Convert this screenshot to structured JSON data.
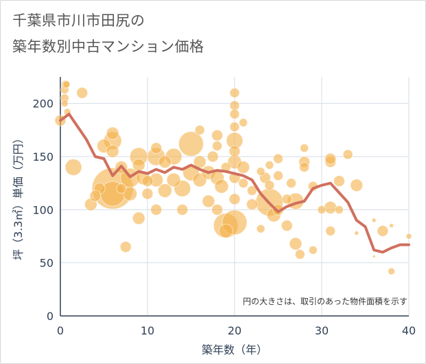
{
  "title_line1": "千葉県市川市田尻の",
  "title_line2": "築年数別中古マンション価格",
  "note": "円の大きさは、取引のあった物件面積を示す",
  "chart_data": {
    "type": "scatter",
    "xlabel": "築年数（年）",
    "ylabel": "坪（3.3㎡）単価（万円）",
    "xlim": [
      0,
      40
    ],
    "ylim": [
      0,
      225
    ],
    "xticks": [
      "0",
      "10",
      "20",
      "30",
      "40"
    ],
    "yticks": [
      "0",
      "50",
      "100",
      "150",
      "200"
    ],
    "grid": true,
    "bubble_color": "#f3b04a",
    "line_color": "#d0705e",
    "bubbles": [
      [
        0,
        184,
        8
      ],
      [
        0.5,
        213,
        6
      ],
      [
        0.5,
        200,
        5
      ],
      [
        0.6,
        218,
        6
      ],
      [
        0.7,
        218,
        5
      ],
      [
        0.5,
        205,
        6
      ],
      [
        0.8,
        192,
        5
      ],
      [
        2.5,
        210,
        8
      ],
      [
        1.5,
        140,
        12
      ],
      [
        4.5,
        120,
        8
      ],
      [
        4,
        113,
        8
      ],
      [
        3.5,
        105,
        9
      ],
      [
        5,
        160,
        10
      ],
      [
        6,
        165,
        13
      ],
      [
        6,
        172,
        9
      ],
      [
        6,
        155,
        9
      ],
      [
        7,
        140,
        9
      ],
      [
        7,
        120,
        7
      ],
      [
        6,
        120,
        30
      ],
      [
        6,
        115,
        18
      ],
      [
        8,
        130,
        14
      ],
      [
        8,
        115,
        10
      ],
      [
        9,
        150,
        13
      ],
      [
        9,
        142,
        9
      ],
      [
        9,
        92,
        9
      ],
      [
        7.5,
        65,
        8
      ],
      [
        9.5,
        130,
        10
      ],
      [
        10,
        127,
        8
      ],
      [
        10,
        115,
        8
      ],
      [
        11,
        158,
        8
      ],
      [
        11,
        150,
        13
      ],
      [
        11,
        128,
        10
      ],
      [
        11,
        100,
        8
      ],
      [
        12,
        118,
        10
      ],
      [
        12,
        145,
        9
      ],
      [
        13,
        150,
        12
      ],
      [
        13,
        128,
        10
      ],
      [
        14,
        120,
        12
      ],
      [
        14,
        100,
        8
      ],
      [
        15,
        162,
        18
      ],
      [
        15,
        135,
        12
      ],
      [
        16,
        175,
        7
      ],
      [
        16,
        145,
        9
      ],
      [
        16,
        128,
        10
      ],
      [
        17,
        135,
        10
      ],
      [
        17,
        108,
        9
      ],
      [
        17.5,
        150,
        8
      ],
      [
        18,
        170,
        8
      ],
      [
        18,
        160,
        7
      ],
      [
        18,
        130,
        10
      ],
      [
        18,
        100,
        8
      ],
      [
        18.5,
        122,
        10
      ],
      [
        19,
        85,
        18
      ],
      [
        19,
        80,
        10
      ],
      [
        19,
        140,
        7
      ],
      [
        20,
        210,
        7
      ],
      [
        20,
        198,
        7
      ],
      [
        20,
        190,
        7
      ],
      [
        20,
        178,
        7
      ],
      [
        20,
        165,
        12
      ],
      [
        20,
        155,
        8
      ],
      [
        20,
        145,
        10
      ],
      [
        20,
        130,
        8
      ],
      [
        20,
        110,
        8
      ],
      [
        20,
        88,
        18
      ],
      [
        21,
        182,
        6
      ],
      [
        21,
        140,
        9
      ],
      [
        21,
        125,
        7
      ],
      [
        22,
        118,
        7
      ],
      [
        22,
        105,
        8
      ],
      [
        23,
        136,
        6
      ],
      [
        23,
        82,
        6
      ],
      [
        23.5,
        130,
        8
      ],
      [
        24,
        142,
        6
      ],
      [
        24,
        123,
        7
      ],
      [
        24,
        107,
        20
      ],
      [
        24.5,
        95,
        10
      ],
      [
        25,
        148,
        7
      ],
      [
        25,
        132,
        7
      ],
      [
        25,
        100,
        8
      ],
      [
        26,
        85,
        8
      ],
      [
        26,
        110,
        7
      ],
      [
        26.5,
        125,
        7
      ],
      [
        27,
        108,
        12
      ],
      [
        27,
        68,
        9
      ],
      [
        27.5,
        58,
        7
      ],
      [
        28,
        158,
        6
      ],
      [
        28,
        145,
        8
      ],
      [
        28,
        140,
        7
      ],
      [
        29,
        122,
        7
      ],
      [
        29,
        62,
        6
      ],
      [
        30,
        100,
        6
      ],
      [
        31,
        145,
        8
      ],
      [
        31,
        148,
        8
      ],
      [
        31,
        102,
        9
      ],
      [
        31,
        80,
        7
      ],
      [
        32,
        127,
        8
      ],
      [
        32,
        100,
        6
      ],
      [
        33,
        152,
        7
      ],
      [
        34,
        123,
        9
      ],
      [
        34,
        78,
        3
      ],
      [
        36,
        90,
        3
      ],
      [
        36,
        56,
        2
      ],
      [
        37,
        80,
        8
      ],
      [
        38,
        42,
        5
      ],
      [
        38,
        85,
        3
      ],
      [
        38,
        100,
        1
      ],
      [
        40,
        75,
        4
      ]
    ],
    "trend": [
      [
        0,
        184
      ],
      [
        1,
        190
      ],
      [
        2,
        178
      ],
      [
        3,
        166
      ],
      [
        4,
        150
      ],
      [
        5,
        148
      ],
      [
        6,
        132
      ],
      [
        7,
        141
      ],
      [
        8,
        131
      ],
      [
        9,
        136
      ],
      [
        10,
        134
      ],
      [
        11,
        138
      ],
      [
        12,
        135
      ],
      [
        13,
        140
      ],
      [
        14,
        138
      ],
      [
        15,
        142
      ],
      [
        16,
        138
      ],
      [
        17,
        135
      ],
      [
        18,
        137
      ],
      [
        19,
        136
      ],
      [
        20,
        134
      ],
      [
        21,
        132
      ],
      [
        22,
        128
      ],
      [
        23,
        115
      ],
      [
        24,
        106
      ],
      [
        25,
        98
      ],
      [
        26,
        103
      ],
      [
        27,
        106
      ],
      [
        28,
        108
      ],
      [
        29,
        120
      ],
      [
        30,
        123
      ],
      [
        31,
        125
      ],
      [
        32,
        116
      ],
      [
        33,
        107
      ],
      [
        34,
        90
      ],
      [
        35,
        84
      ],
      [
        36,
        62
      ],
      [
        37,
        60
      ],
      [
        38,
        64
      ],
      [
        39,
        67
      ],
      [
        40,
        67
      ]
    ]
  }
}
